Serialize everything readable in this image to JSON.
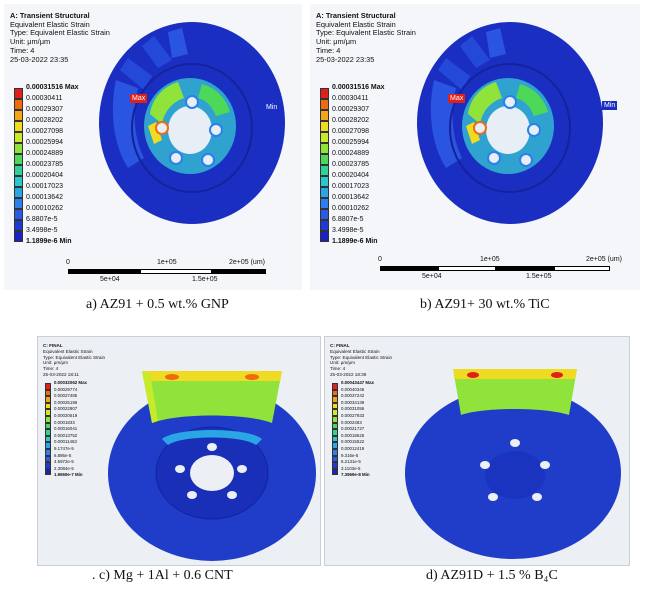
{
  "panels": [
    {
      "title": "A: Transient Structural",
      "lines": [
        "Equivalent Elastic Strain",
        "Type: Equivalent Elastic Strain",
        "Unit: μm/μm",
        "Time: 4",
        "25-03-2022 23:35"
      ],
      "legend": [
        "0.00031516 Max",
        "0.00030411",
        "0.00029307",
        "0.00028202",
        "0.00027098",
        "0.00025994",
        "0.00024889",
        "0.00023785",
        "0.00020404",
        "0.00017023",
        "0.00013642",
        "0.00010262",
        "6.8807e-5",
        "3.4998e-5",
        "1.1899e-6 Min"
      ],
      "max_tag": "Max",
      "min_tag": "Min",
      "scale": {
        "ticks_top": [
          "0",
          "1e+05",
          "2e+05 (um)"
        ],
        "ticks_bottom": [
          "5e+04",
          "1.5e+05"
        ]
      },
      "caption": "a) AZ91 + 0.5 wt.% GNP"
    },
    {
      "title": "A: Transient Structural",
      "lines": [
        "Equivalent Elastic Strain",
        "Type: Equivalent Elastic Strain",
        "Unit: μm/μm",
        "Time: 4",
        "25-03-2022 23:35"
      ],
      "legend": [
        "0.00031516 Max",
        "0.00030411",
        "0.00029307",
        "0.00028202",
        "0.00027098",
        "0.00025994",
        "0.00024889",
        "0.00023785",
        "0.00020404",
        "0.00017023",
        "0.00013642",
        "0.00010262",
        "6.8807e-5",
        "3.4998e-5",
        "1.1899e-6 Min"
      ],
      "max_tag": "Max",
      "min_tag": "Min",
      "scale": {
        "ticks_top": [
          "0",
          "1e+05",
          "2e+05 (um)"
        ],
        "ticks_bottom": [
          "5e+04",
          "1.5e+05"
        ]
      },
      "caption": "b) AZ91+ 30 wt.% TiC"
    },
    {
      "title": "C: FINAL",
      "lines": [
        "Equivalent Elastic Strain",
        "Type: Equivalent Elastic Strain",
        "Unit: μm/μm",
        "Time: 4",
        "25-03-2022 18:11"
      ],
      "legend": [
        "0.00032062 Max",
        "0.00029774",
        "0.00027485",
        "0.00025196",
        "0.00022907",
        "0.00020619",
        "0.0001833",
        "0.00016041",
        "0.00013752",
        "0.00011463",
        "9.1747e-5",
        "6.886e-5",
        "4.5972e-5",
        "2.3084e-5",
        "1.9659e-7 Min"
      ],
      "caption": ". c) Mg + 1Al + 0.6 CNT"
    },
    {
      "title": "C: FINAL",
      "lines": [
        "Equivalent Elastic Strain",
        "Type: Equivalent Elastic Strain",
        "Unit: μm/μm",
        "Time: 4",
        "25-03-2022 18:39"
      ],
      "legend": [
        "0.00043447 Max",
        "0.00040345",
        "0.00037242",
        "0.00034139",
        "0.00031056",
        "0.00027933",
        "0.0002483",
        "0.00021727",
        "0.00018625",
        "0.00015522",
        "0.00012419",
        "9.316e-5",
        "6.2131e-5",
        "3.1103e-5",
        "7.3969e-8 Min"
      ],
      "caption": "d) AZ91D + 1.5 % B₄C"
    }
  ],
  "legend_colors": [
    "#e0201a",
    "#f06a10",
    "#f3a51a",
    "#eedb22",
    "#c7eb2a",
    "#8fe33a",
    "#4ed85a",
    "#2fd296",
    "#2ac8c8",
    "#2aa6e6",
    "#2a80ec",
    "#2a5ae6",
    "#2238d6",
    "#1a22c2"
  ]
}
